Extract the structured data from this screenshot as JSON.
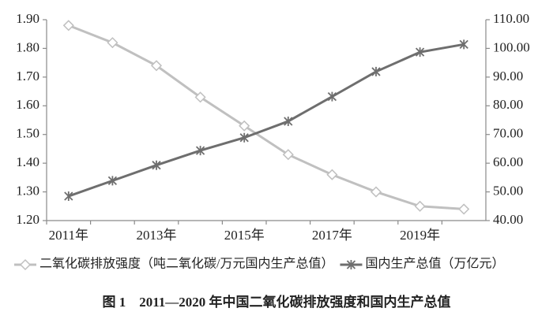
{
  "chart_data": {
    "type": "line",
    "caption": "图 1　2011—2020 年中国二氧化碳排放强度和国内生产总值",
    "categories": [
      "2011年",
      null,
      "2013年",
      null,
      "2015年",
      null,
      "2017年",
      null,
      "2019年",
      null
    ],
    "series": [
      {
        "name": "二氧化碳排放强度（吨二氧化碳/万元国内生产总值）",
        "color": "#c0c0c0",
        "marker": "diamond",
        "values": [
          1.88,
          1.82,
          1.74,
          1.63,
          1.53,
          1.43,
          1.36,
          1.3,
          1.25,
          1.24
        ]
      },
      {
        "name": "国内生产总值（万亿元）",
        "color": "#6e6e6e",
        "marker": "star",
        "axis": "y2",
        "values": [
          48.5,
          53.9,
          59.3,
          64.4,
          68.9,
          74.6,
          83.2,
          91.9,
          98.7,
          101.4
        ]
      }
    ],
    "ylim": [
      1.2,
      1.9
    ],
    "yticks": [
      {
        "value": 1.2,
        "label": "1.20"
      },
      {
        "value": 1.3,
        "label": "1.30"
      },
      {
        "value": 1.4,
        "label": "1.40"
      },
      {
        "value": 1.5,
        "label": "1.50"
      },
      {
        "value": 1.6,
        "label": "1.60"
      },
      {
        "value": 1.7,
        "label": "1.70"
      },
      {
        "value": 1.8,
        "label": "1.80"
      },
      {
        "value": 1.9,
        "label": "1.90"
      }
    ],
    "y2lim": [
      40,
      110
    ],
    "y2ticks": [
      {
        "value": 40,
        "label": "40.00"
      },
      {
        "value": 50,
        "label": "50.00"
      },
      {
        "value": 60,
        "label": "60.00"
      },
      {
        "value": 70,
        "label": "70.00"
      },
      {
        "value": 80,
        "label": "80.00"
      },
      {
        "value": 90,
        "label": "90.00"
      },
      {
        "value": 100,
        "label": "100.00"
      },
      {
        "value": 110,
        "label": "110.00"
      }
    ],
    "grid": false
  }
}
